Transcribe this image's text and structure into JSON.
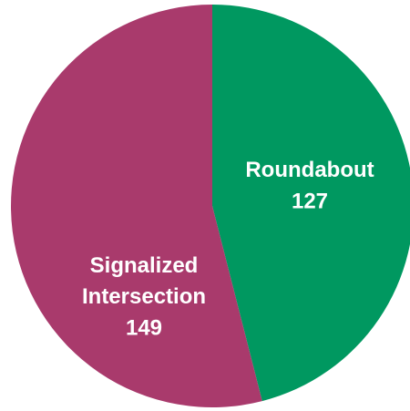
{
  "chart_data": {
    "type": "pie",
    "categories": [
      "Roundabout",
      "Signalized Intersection"
    ],
    "values": [
      127,
      149
    ],
    "colors": [
      "#009860",
      "#a93a6c"
    ]
  }
}
